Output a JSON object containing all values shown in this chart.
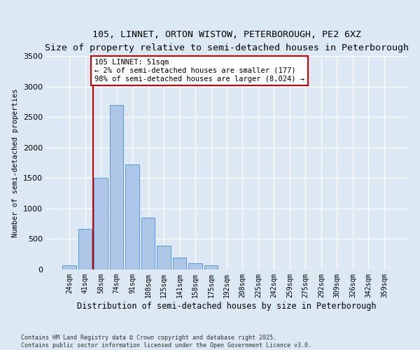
{
  "title1": "105, LINNET, ORTON WISTOW, PETERBOROUGH, PE2 6XZ",
  "title2": "Size of property relative to semi-detached houses in Peterborough",
  "xlabel": "Distribution of semi-detached houses by size in Peterborough",
  "ylabel": "Number of semi-detached properties",
  "categories": [
    "24sqm",
    "41sqm",
    "58sqm",
    "74sqm",
    "91sqm",
    "108sqm",
    "125sqm",
    "141sqm",
    "158sqm",
    "175sqm",
    "192sqm",
    "208sqm",
    "225sqm",
    "242sqm",
    "259sqm",
    "275sqm",
    "292sqm",
    "309sqm",
    "326sqm",
    "342sqm",
    "359sqm"
  ],
  "values": [
    65,
    660,
    1500,
    2700,
    1720,
    850,
    390,
    200,
    100,
    70,
    0,
    0,
    0,
    0,
    0,
    0,
    0,
    0,
    0,
    0,
    0
  ],
  "bar_color": "#aec6e8",
  "bar_edge_color": "#5b9bd5",
  "vline_color": "#cc0000",
  "annotation_title": "105 LINNET: 51sqm",
  "annotation_line1": "← 2% of semi-detached houses are smaller (177)",
  "annotation_line2": "98% of semi-detached houses are larger (8,024) →",
  "ylim": [
    0,
    3500
  ],
  "yticks": [
    0,
    500,
    1000,
    1500,
    2000,
    2500,
    3000,
    3500
  ],
  "background_color": "#dce9f5",
  "grid_color": "#ffffff",
  "footer1": "Contains HM Land Registry data © Crown copyright and database right 2025.",
  "footer2": "Contains public sector information licensed under the Open Government Licence v3.0."
}
